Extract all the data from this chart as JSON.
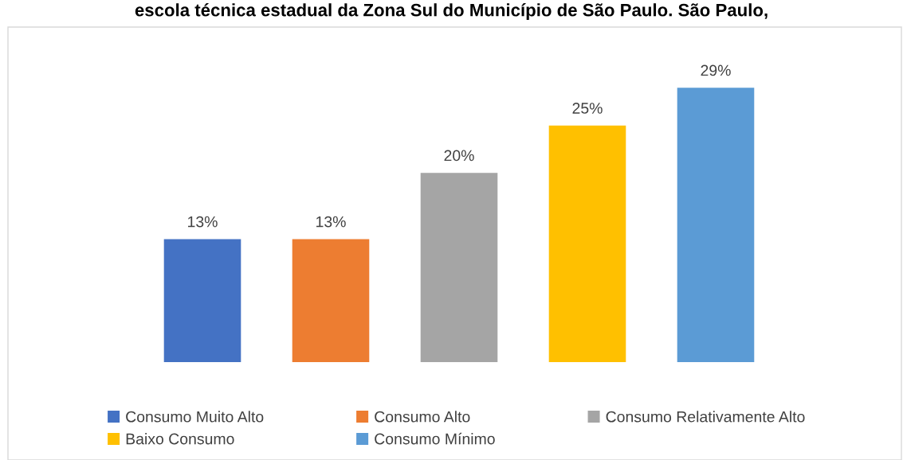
{
  "chart_data": {
    "type": "bar",
    "title": "escola técnica estadual da Zona Sul do Município de São Paulo. São Paulo,",
    "categories": [
      null,
      null,
      null,
      null,
      null
    ],
    "stacked": true,
    "series": [
      {
        "name": "Consumo Muito Alto",
        "color": "#4472c4",
        "values": [
          13,
          null,
          null,
          null,
          null
        ],
        "value_labels": [
          "13%",
          null,
          null,
          null,
          null
        ]
      },
      {
        "name": "Consumo Alto",
        "color": "#ed7d31",
        "values": [
          null,
          13,
          null,
          null,
          null
        ],
        "value_labels": [
          null,
          "13%",
          null,
          null,
          null
        ]
      },
      {
        "name": "Consumo Relativamente Alto",
        "color": "#a5a5a5",
        "values": [
          null,
          null,
          20,
          null,
          null
        ],
        "value_labels": [
          null,
          null,
          "20%",
          null,
          null
        ]
      },
      {
        "name": "Baixo Consumo",
        "color": "#ffc000",
        "values": [
          null,
          null,
          null,
          25,
          null
        ],
        "value_labels": [
          null,
          null,
          null,
          "25%",
          null
        ]
      },
      {
        "name": "Consumo Mínimo",
        "color": "#5b9bd5",
        "values": [
          null,
          null,
          null,
          null,
          29
        ],
        "value_labels": [
          null,
          null,
          null,
          null,
          "29%"
        ]
      }
    ],
    "grid": false,
    "legend": "bottom"
  }
}
